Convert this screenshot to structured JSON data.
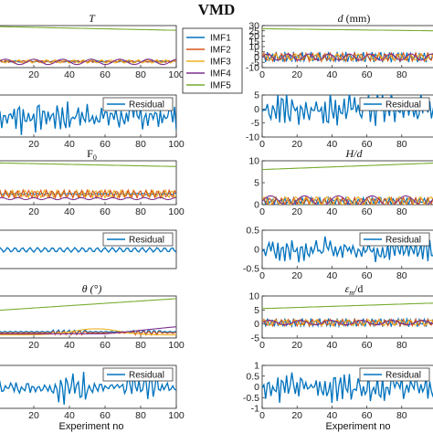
{
  "figure": {
    "suptitle": "VMD",
    "xlabel_left": "Experiment no",
    "xlabel_right": "Experiment no"
  },
  "colors": {
    "IMF1": "#0072bd",
    "IMF2": "#d95319",
    "IMF3": "#edb120",
    "IMF4": "#7e2f8e",
    "IMF5": "#77ac30",
    "Residual": "#0072bd"
  },
  "legends": {
    "imf": [
      "IMF1",
      "IMF2",
      "IMF3",
      "IMF4",
      "IMF5"
    ],
    "residual": "Residual"
  },
  "chart_data": [
    {
      "type": "line",
      "id": "T_imf",
      "title": "T",
      "col": "left",
      "row": 0,
      "xlim": [
        0,
        100
      ],
      "xticks": [
        20,
        40,
        60,
        80,
        100
      ],
      "yticks": [],
      "grid": false,
      "legend": "right",
      "series": [
        {
          "name": "IMF5",
          "kind": "trend",
          "start": 1.0,
          "end": 0.82
        },
        {
          "name": "IMF1",
          "kind": "osc",
          "amp": 0.03,
          "period": 4.3,
          "offset": -0.7
        },
        {
          "name": "IMF2",
          "kind": "osc",
          "amp": 0.05,
          "period": 3.4,
          "offset": -0.7
        },
        {
          "name": "IMF3",
          "kind": "osc",
          "amp": 0.08,
          "period": 5.2,
          "offset": -0.7
        },
        {
          "name": "IMF4",
          "kind": "osc",
          "amp": 0.13,
          "period": 16.5,
          "offset": -0.72
        }
      ]
    },
    {
      "type": "line",
      "id": "T_res",
      "col": "left",
      "row": 1,
      "xlim": [
        0,
        100
      ],
      "xticks": [
        20,
        40,
        60,
        80,
        100
      ],
      "yticks": [],
      "grid": false,
      "legend": "top-right",
      "series": [
        {
          "name": "Residual",
          "kind": "noise",
          "amp": 0.85
        }
      ]
    },
    {
      "type": "line",
      "id": "F0_imf",
      "title": "F",
      "title_sub": "0",
      "col": "left",
      "row": 2,
      "xlim": [
        0,
        100
      ],
      "xticks": [
        20,
        40,
        60,
        80,
        100
      ],
      "yticks": [],
      "grid": false,
      "series": [
        {
          "name": "IMF5",
          "kind": "trend",
          "start": 0.95,
          "end": 0.78
        },
        {
          "name": "IMF1",
          "kind": "osc",
          "amp": 0.04,
          "period": 3.0,
          "offset": -0.5
        },
        {
          "name": "IMF3",
          "kind": "osc",
          "amp": 0.18,
          "period": 3.6,
          "offset": -0.5
        },
        {
          "name": "IMF2",
          "kind": "osc",
          "amp": 0.18,
          "period": 3.3,
          "offset": -0.5
        },
        {
          "name": "IMF4",
          "kind": "osc",
          "amp": 0.05,
          "period": 9.0,
          "offset": -0.72
        }
      ]
    },
    {
      "type": "line",
      "id": "F0_res",
      "col": "left",
      "row": 3,
      "xlim": [
        0,
        100
      ],
      "xticks": [],
      "yticks": [],
      "grid": false,
      "legend": "top-right",
      "series": [
        {
          "name": "Residual",
          "kind": "ripple",
          "amp": 0.12
        }
      ]
    },
    {
      "type": "line",
      "id": "theta_imf",
      "title": "θ (°)",
      "col": "left",
      "row": 4,
      "xlim": [
        0,
        100
      ],
      "xticks": [
        20,
        40,
        60,
        80,
        100
      ],
      "yticks": [],
      "grid": false,
      "series": [
        {
          "name": "IMF5",
          "kind": "trend",
          "start": 0.35,
          "end": 0.92
        },
        {
          "name": "IMF1",
          "kind": "bursty",
          "amp": 0.12,
          "offset": -0.7
        },
        {
          "name": "IMF2",
          "kind": "bursty",
          "amp": 0.1,
          "offset": -0.75
        },
        {
          "name": "IMF3",
          "kind": "hump",
          "amp": 0.3,
          "offset": -0.85
        },
        {
          "name": "IMF4",
          "kind": "ramp",
          "amp": 0.35,
          "offset": -0.8
        }
      ]
    },
    {
      "type": "line",
      "id": "theta_res",
      "col": "left",
      "row": 5,
      "xlim": [
        0,
        100
      ],
      "xticks": [
        20,
        40,
        60,
        80,
        100
      ],
      "yticks": [],
      "grid": false,
      "legend": "top-right",
      "series": [
        {
          "name": "Residual",
          "kind": "bursty_noise",
          "amp": 0.8
        }
      ]
    },
    {
      "type": "line",
      "id": "d_imf",
      "title": "d",
      "title_unit": " (mm)",
      "col": "right",
      "row": 0,
      "xlim": [
        0,
        100
      ],
      "ylim": [
        -10,
        30
      ],
      "xticks": [
        0,
        20,
        40,
        60,
        80
      ],
      "yticks": [
        -10,
        -5,
        0,
        5,
        10,
        15,
        20,
        25,
        30
      ],
      "grid": false,
      "series": [
        {
          "name": "IMF5",
          "kind": "trend_data",
          "start": 27,
          "end": 25
        },
        {
          "name": "IMF1",
          "kind": "osc_data",
          "amp": 5,
          "period": 2.5,
          "offset": 0
        },
        {
          "name": "IMF2",
          "kind": "osc_data",
          "amp": 4,
          "period": 3.5,
          "offset": 0
        },
        {
          "name": "IMF3",
          "kind": "osc_data",
          "amp": 3,
          "period": 6.0,
          "offset": 0
        },
        {
          "name": "IMF4",
          "kind": "osc_data",
          "amp": 3,
          "period": 12.0,
          "offset": 0
        }
      ]
    },
    {
      "type": "line",
      "id": "d_res",
      "col": "right",
      "row": 1,
      "xlim": [
        0,
        100
      ],
      "ylim": [
        -10,
        5
      ],
      "xticks": [
        0,
        20,
        40,
        60,
        80
      ],
      "yticks": [
        -10,
        -5,
        0,
        5
      ],
      "grid": false,
      "legend": "top-right",
      "series": [
        {
          "name": "Residual",
          "kind": "noise_data",
          "amp": 7
        }
      ]
    },
    {
      "type": "line",
      "id": "Hd_imf",
      "title": "H/d",
      "col": "right",
      "row": 2,
      "xlim": [
        0,
        100
      ],
      "ylim": [
        0,
        10
      ],
      "xticks": [
        0,
        20,
        40,
        60,
        80
      ],
      "yticks": [
        0,
        5,
        10
      ],
      "grid": false,
      "series": [
        {
          "name": "IMF5",
          "kind": "trend_data",
          "start": 8.0,
          "end": 9.5
        },
        {
          "name": "IMF1",
          "kind": "osc_data",
          "amp": 0.8,
          "period": 2.5,
          "offset": 0.8
        },
        {
          "name": "IMF2",
          "kind": "osc_data",
          "amp": 0.8,
          "period": 3.5,
          "offset": 0.8
        },
        {
          "name": "IMF3",
          "kind": "osc_data",
          "amp": 1.0,
          "period": 6.0,
          "offset": 0.8
        },
        {
          "name": "IMF4",
          "kind": "osc_data",
          "amp": 1.2,
          "period": 20.0,
          "offset": 0.8
        }
      ]
    },
    {
      "type": "line",
      "id": "Hd_res",
      "col": "right",
      "row": 3,
      "xlim": [
        0,
        100
      ],
      "ylim": [
        -0.5,
        0.5
      ],
      "xticks": [
        0,
        20,
        40,
        60,
        80
      ],
      "yticks": [
        -0.5,
        0,
        0.5
      ],
      "grid": false,
      "legend": "top-right",
      "series": [
        {
          "name": "Residual",
          "kind": "noise_data",
          "amp": 0.35
        }
      ]
    },
    {
      "type": "line",
      "id": "Emd_imf",
      "title": "ε",
      "title_sub": "m",
      "title_unit": "/d",
      "col": "right",
      "row": 4,
      "xlim": [
        0,
        100
      ],
      "ylim": [
        -5,
        10
      ],
      "xticks": [
        0,
        20,
        40,
        60,
        80
      ],
      "yticks": [
        -5,
        0,
        5,
        10
      ],
      "grid": false,
      "series": [
        {
          "name": "IMF5",
          "kind": "trend_data",
          "start": 5.5,
          "end": 7.5
        },
        {
          "name": "IMF1",
          "kind": "osc_data",
          "amp": 1.5,
          "period": 2.5,
          "offset": 0.5
        },
        {
          "name": "IMF2",
          "kind": "osc_data",
          "amp": 1.2,
          "period": 3.5,
          "offset": 0.5
        },
        {
          "name": "IMF3",
          "kind": "osc_data",
          "amp": 1.0,
          "period": 6.0,
          "offset": 0.5
        },
        {
          "name": "IMF4",
          "kind": "osc_data",
          "amp": 0.8,
          "period": 18.0,
          "offset": 0.5
        }
      ]
    },
    {
      "type": "line",
      "id": "Emd_res",
      "col": "right",
      "row": 5,
      "xlim": [
        0,
        100
      ],
      "ylim": [
        -1,
        1
      ],
      "xticks": [
        0,
        20,
        40,
        60,
        80
      ],
      "yticks": [
        -1,
        -0.5,
        0,
        0.5,
        1
      ],
      "grid": false,
      "legend": "top-right",
      "series": [
        {
          "name": "Residual",
          "kind": "noise_data",
          "amp": 0.75
        }
      ]
    }
  ]
}
